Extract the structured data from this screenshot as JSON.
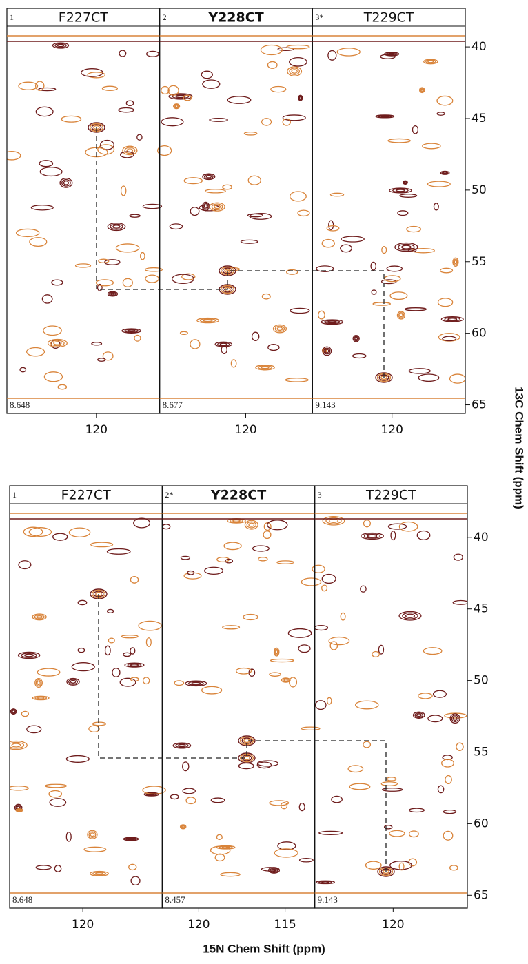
{
  "chart_data": [
    {
      "type": "strip",
      "ylabel": "13C Chem Shift (ppm)",
      "ylim": [
        37.3,
        65.6
      ],
      "yticks": [
        40,
        45,
        50,
        55,
        60,
        65
      ],
      "strips": [
        {
          "index": "1",
          "name": "F227CT",
          "bold": false,
          "shift": "8.648",
          "xlim": [
            125.2,
            116.32
          ],
          "xticks": [
            120
          ]
        },
        {
          "index": "2",
          "name": "Y228CT",
          "bold": true,
          "shift": "8.677",
          "xlim": [
            125.0,
            116.12
          ],
          "xticks": [
            120
          ]
        },
        {
          "index": "3*",
          "name": "T229CT",
          "bold": false,
          "shift": "9.143",
          "xlim": [
            124.6,
            115.76
          ],
          "xticks": [
            120
          ]
        }
      ]
    },
    {
      "type": "strip",
      "xlabel": "15N Chem Shift (ppm)",
      "ylim": [
        36.4,
        65.9
      ],
      "yticks": [
        40,
        45,
        50,
        55,
        60,
        65
      ],
      "strips": [
        {
          "index": "1",
          "name": "F227CT",
          "bold": false,
          "shift": "8.648",
          "xlim": [
            124.24,
            115.4
          ],
          "xticks": [
            120
          ]
        },
        {
          "index": "2*",
          "name": "Y228CT",
          "bold": true,
          "shift": "8.457",
          "xlim": [
            122.12,
            113.28
          ],
          "xticks": [
            120,
            115
          ]
        },
        {
          "index": "3",
          "name": "T229CT",
          "bold": false,
          "shift": "9.143",
          "xlim": [
            124.56,
            115.68
          ],
          "xticks": [
            120
          ]
        }
      ]
    }
  ]
}
